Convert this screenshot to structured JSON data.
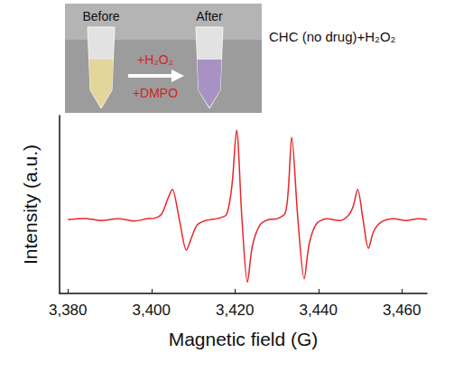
{
  "chart_data": {
    "type": "line",
    "title": "CHC (no drug)+H₂O₂",
    "annotations": [
      "Before",
      "After",
      "+H₂O₂",
      "+DMPO"
    ],
    "x_label": "Magnetic field (G)",
    "y_label": "Intensity (a.u.)",
    "x": [
      3380,
      3384,
      3388,
      3392,
      3396,
      3399,
      3401,
      3402.5,
      3404,
      3405,
      3406.7,
      3408.4,
      3409.5,
      3411,
      3413,
      3416,
      3418,
      3419.3,
      3420.4,
      3421.7,
      3423,
      3424.2,
      3426,
      3428,
      3430,
      3432,
      3432.8,
      3433.6,
      3435.1,
      3436.6,
      3437.8,
      3439.5,
      3442,
      3445,
      3447,
      3448.3,
      3449.4,
      3450.7,
      3452,
      3453.2,
      3455,
      3458,
      3461,
      3464,
      3466
    ],
    "values": [
      0,
      1.5,
      -1,
      1,
      -1.5,
      1,
      2,
      7,
      25,
      35,
      0,
      -35,
      -22,
      -6,
      -1,
      1.5,
      6,
      40,
      103,
      0,
      -72,
      -30,
      -6,
      0,
      1,
      7,
      35,
      95,
      0,
      -68,
      -28,
      -5,
      1,
      -1,
      4,
      15,
      35,
      0,
      -33,
      -14,
      -3,
      1,
      -1,
      1,
      0
    ],
    "color": "#e8262a",
    "xlim": [
      3378,
      3466
    ],
    "xticks": [
      3380,
      3400,
      3420,
      3440,
      3460
    ],
    "ylim": [
      -85,
      120
    ],
    "tick_labels": "x",
    "grid": false
  }
}
